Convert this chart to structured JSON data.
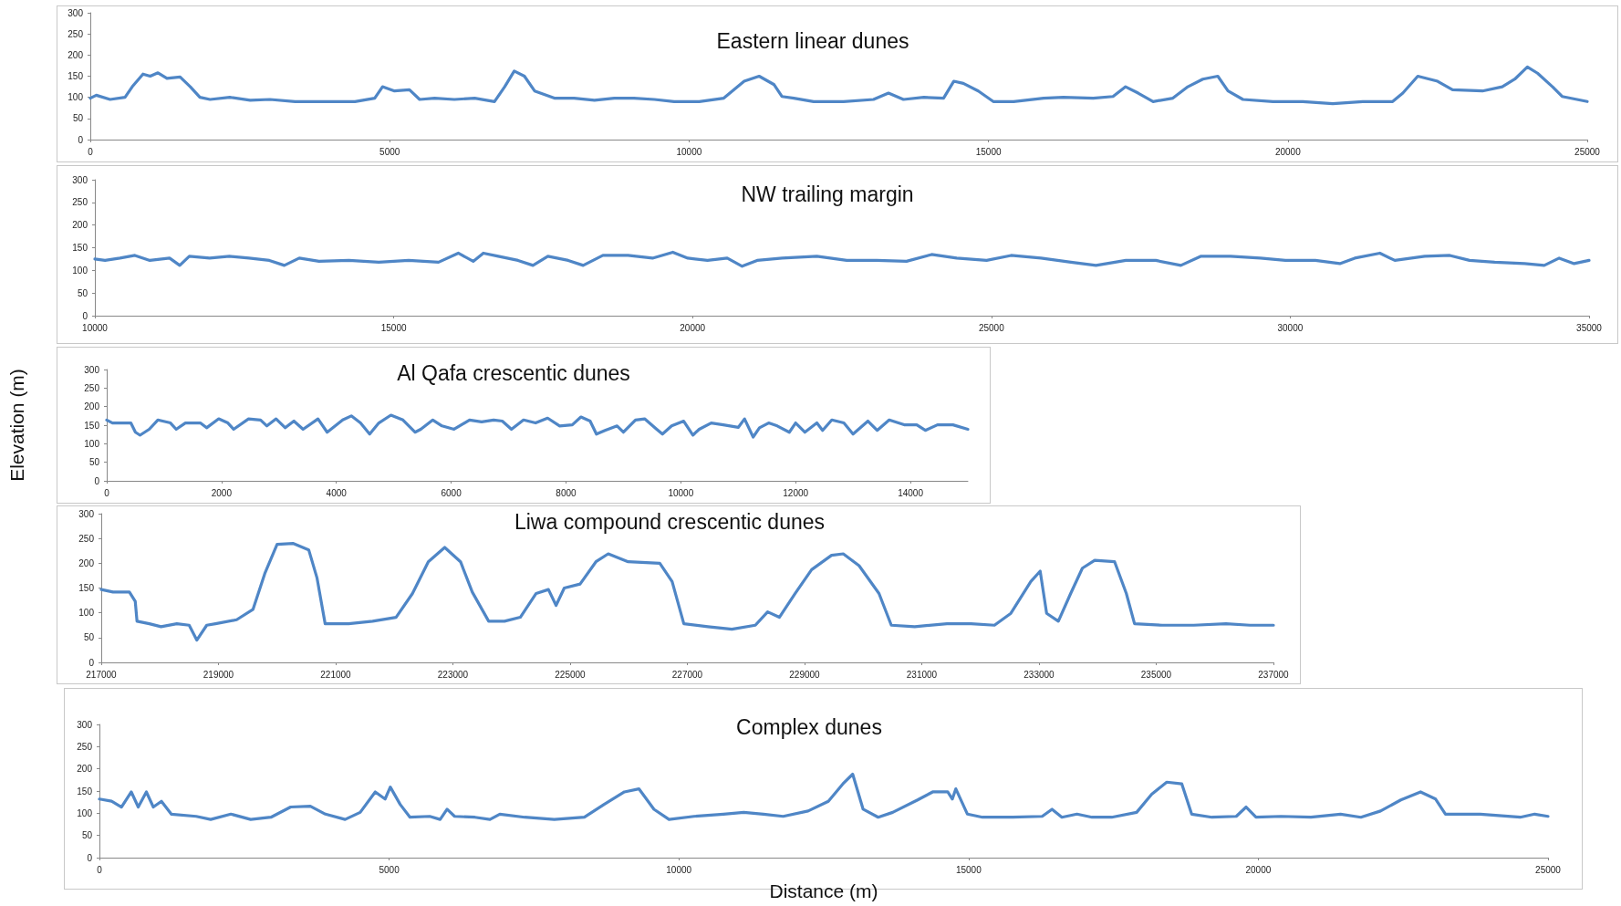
{
  "chart_data": [
    {
      "type": "line",
      "title": "Eastern linear dunes",
      "marker": "none",
      "line_style": "solid",
      "xlim": [
        0,
        25000
      ],
      "xticks": [
        0,
        5000,
        10000,
        15000,
        20000,
        25000
      ],
      "ylim": [
        0,
        300
      ],
      "yticks": [
        0,
        50,
        100,
        150,
        200,
        250,
        300
      ],
      "x": [
        0,
        100,
        330,
        580,
        700,
        880,
        1000,
        1130,
        1280,
        1500,
        1670,
        1830,
        2000,
        2330,
        2670,
        3000,
        3420,
        3920,
        4420,
        4750,
        4880,
        5080,
        5330,
        5500,
        5750,
        6080,
        6420,
        6750,
        6920,
        7080,
        7250,
        7420,
        7750,
        8080,
        8420,
        8750,
        9080,
        9420,
        9750,
        10170,
        10580,
        10920,
        11170,
        11420,
        11550,
        11750,
        12080,
        12580,
        13080,
        13330,
        13580,
        13920,
        14250,
        14420,
        14580,
        14830,
        15080,
        15420,
        15920,
        16250,
        16750,
        17080,
        17290,
        17500,
        17750,
        18080,
        18330,
        18580,
        18830,
        19000,
        19250,
        19750,
        20250,
        20750,
        21250,
        21750,
        21920,
        22170,
        22500,
        22750,
        23250,
        23580,
        23790,
        24000,
        24170,
        24420,
        24580,
        25000
      ],
      "series": [
        {
          "color": "#4f86c6",
          "values": [
            98,
            105,
            95,
            100,
            125,
            155,
            150,
            158,
            145,
            148,
            125,
            100,
            95,
            100,
            93,
            95,
            90,
            90,
            90,
            98,
            125,
            115,
            118,
            95,
            98,
            95,
            98,
            90,
            125,
            162,
            150,
            115,
            98,
            98,
            93,
            98,
            98,
            95,
            90,
            90,
            98,
            138,
            150,
            130,
            102,
            98,
            90,
            90,
            95,
            110,
            95,
            100,
            98,
            138,
            133,
            115,
            90,
            90,
            98,
            100,
            98,
            102,
            125,
            110,
            90,
            98,
            125,
            143,
            150,
            115,
            95,
            90,
            90,
            85,
            90,
            90,
            110,
            150,
            138,
            118,
            115,
            125,
            143,
            172,
            157,
            125,
            102,
            90
          ]
        }
      ]
    },
    {
      "type": "line",
      "title": "NW trailing margin",
      "marker": "none",
      "line_style": "solid",
      "xlim": [
        10000,
        35000
      ],
      "xticks": [
        10000,
        15000,
        20000,
        25000,
        30000,
        35000
      ],
      "ylim": [
        0,
        300
      ],
      "yticks": [
        0,
        50,
        100,
        150,
        200,
        250,
        300
      ],
      "x": [
        10000,
        10170,
        10420,
        10670,
        10920,
        11250,
        11420,
        11580,
        11920,
        12250,
        12580,
        12920,
        13170,
        13420,
        13750,
        14250,
        14750,
        15250,
        15750,
        16080,
        16330,
        16500,
        16750,
        17080,
        17330,
        17580,
        17920,
        18170,
        18500,
        18920,
        19330,
        19670,
        19920,
        20250,
        20580,
        20830,
        21080,
        21500,
        22080,
        22580,
        23080,
        23580,
        24000,
        24420,
        24920,
        25330,
        25830,
        26330,
        26750,
        27250,
        27750,
        28170,
        28500,
        29000,
        29500,
        29920,
        30420,
        30830,
        31080,
        31500,
        31750,
        32250,
        32670,
        33000,
        33420,
        33920,
        34250,
        34500,
        34750,
        35000
      ],
      "series": [
        {
          "color": "#4f86c6",
          "values": [
            125,
            122,
            127,
            133,
            122,
            127,
            111,
            131,
            127,
            131,
            127,
            122,
            111,
            127,
            120,
            122,
            118,
            122,
            118,
            138,
            120,
            138,
            131,
            122,
            111,
            131,
            122,
            111,
            133,
            133,
            127,
            140,
            127,
            122,
            127,
            109,
            122,
            127,
            131,
            122,
            122,
            120,
            135,
            127,
            122,
            133,
            127,
            118,
            111,
            122,
            122,
            111,
            131,
            131,
            127,
            122,
            122,
            115,
            127,
            138,
            122,
            131,
            133,
            122,
            118,
            115,
            111,
            127,
            115,
            122
          ]
        }
      ]
    },
    {
      "type": "line",
      "title": "Al Qafa crescentic dunes",
      "ylabel": "Elevation (m)",
      "marker": "none",
      "line_style": "solid",
      "xlim": [
        0,
        15000
      ],
      "xticks": [
        0,
        2000,
        4000,
        6000,
        8000,
        10000,
        12000,
        14000
      ],
      "ylim": [
        0,
        300
      ],
      "yticks": [
        0,
        50,
        100,
        150,
        200,
        250,
        300
      ],
      "x": [
        0,
        100,
        420,
        500,
        580,
        740,
        890,
        1110,
        1210,
        1370,
        1630,
        1740,
        1950,
        2110,
        2210,
        2470,
        2680,
        2790,
        2950,
        3110,
        3260,
        3420,
        3680,
        3840,
        4110,
        4260,
        4420,
        4580,
        4740,
        4950,
        5160,
        5370,
        5470,
        5680,
        5840,
        6050,
        6320,
        6530,
        6740,
        6890,
        7050,
        7260,
        7470,
        7680,
        7890,
        8110,
        8260,
        8420,
        8530,
        8680,
        8890,
        9000,
        9210,
        9370,
        9580,
        9680,
        9840,
        10050,
        10210,
        10320,
        10530,
        10740,
        11000,
        11110,
        11260,
        11370,
        11530,
        11680,
        11890,
        12000,
        12160,
        12370,
        12470,
        12630,
        12840,
        13000,
        13260,
        13420,
        13630,
        13890,
        14110,
        14260,
        14470,
        14740,
        15000
      ],
      "series": [
        {
          "color": "#4f86c6",
          "values": [
            164,
            156,
            156,
            131,
            123,
            139,
            164,
            156,
            139,
            156,
            156,
            143,
            167,
            156,
            139,
            167,
            164,
            148,
            167,
            143,
            161,
            139,
            167,
            131,
            164,
            175,
            156,
            126,
            156,
            177,
            164,
            131,
            139,
            164,
            148,
            139,
            164,
            159,
            164,
            161,
            139,
            164,
            156,
            169,
            148,
            151,
            172,
            161,
            126,
            136,
            148,
            131,
            164,
            167,
            139,
            126,
            148,
            161,
            123,
            139,
            156,
            151,
            144,
            167,
            118,
            143,
            156,
            148,
            131,
            156,
            131,
            156,
            136,
            164,
            156,
            126,
            161,
            136,
            164,
            151,
            151,
            136,
            151,
            151,
            139
          ]
        }
      ]
    },
    {
      "type": "line",
      "title": "Liwa compound crescentic dunes",
      "marker": "none",
      "line_style": "solid",
      "xlim": [
        217000,
        237000
      ],
      "xticks": [
        217000,
        219000,
        221000,
        223000,
        225000,
        227000,
        229000,
        231000,
        233000,
        235000,
        237000
      ],
      "ylim": [
        0,
        300
      ],
      "yticks": [
        0,
        50,
        100,
        150,
        200,
        250,
        300
      ],
      "x": [
        217000,
        217200,
        217480,
        217580,
        217610,
        217820,
        218020,
        218290,
        218500,
        218630,
        218800,
        218950,
        219310,
        219590,
        219790,
        220000,
        220270,
        220540,
        220680,
        220820,
        221220,
        221630,
        222030,
        222310,
        222580,
        222860,
        223130,
        223330,
        223610,
        223880,
        224150,
        224420,
        224630,
        224760,
        224900,
        225170,
        225440,
        225650,
        225990,
        226530,
        226740,
        226940,
        227350,
        227760,
        228160,
        228370,
        228570,
        228840,
        229120,
        229460,
        229660,
        229930,
        230270,
        230480,
        230880,
        231430,
        231840,
        232240,
        232520,
        232860,
        233020,
        233130,
        233330,
        233540,
        233740,
        233950,
        234290,
        234490,
        234630,
        235100,
        235640,
        236190,
        236600,
        237000
      ],
      "series": [
        {
          "color": "#4f86c6",
          "values": [
            147,
            142,
            142,
            123,
            83,
            78,
            72,
            78,
            75,
            45,
            75,
            78,
            86,
            107,
            179,
            238,
            240,
            227,
            171,
            78,
            78,
            83,
            91,
            139,
            203,
            232,
            203,
            142,
            83,
            83,
            91,
            139,
            147,
            115,
            150,
            158,
            203,
            219,
            203,
            200,
            163,
            78,
            72,
            67,
            75,
            102,
            91,
            139,
            187,
            216,
            219,
            195,
            139,
            75,
            72,
            78,
            78,
            75,
            99,
            163,
            184,
            99,
            83,
            139,
            190,
            206,
            203,
            139,
            78,
            75,
            75,
            78,
            75,
            75
          ]
        }
      ]
    },
    {
      "type": "line",
      "title": "Complex dunes",
      "xlabel": "Distance (m)",
      "marker": "none",
      "line_style": "solid",
      "xlim": [
        0,
        25000
      ],
      "xticks": [
        0,
        5000,
        10000,
        15000,
        20000,
        25000
      ],
      "ylim": [
        0,
        300
      ],
      "yticks": [
        0,
        50,
        100,
        150,
        200,
        250,
        300
      ],
      "x": [
        0,
        210,
        380,
        550,
        670,
        810,
        930,
        1070,
        1240,
        1670,
        1920,
        2270,
        2610,
        2960,
        3300,
        3640,
        3900,
        4240,
        4500,
        4760,
        4930,
        5020,
        5190,
        5360,
        5700,
        5880,
        6000,
        6130,
        6480,
        6740,
        6910,
        7340,
        7850,
        8370,
        8710,
        9060,
        9310,
        9570,
        9830,
        10260,
        10770,
        11120,
        11460,
        11800,
        12230,
        12580,
        12830,
        13000,
        13180,
        13440,
        13690,
        14120,
        14380,
        14640,
        14720,
        14780,
        14980,
        15240,
        15760,
        16270,
        16440,
        16610,
        16870,
        17130,
        17470,
        17900,
        18160,
        18420,
        18680,
        18850,
        19200,
        19620,
        19790,
        19960,
        20390,
        20910,
        21420,
        21770,
        22110,
        22460,
        22800,
        23060,
        23230,
        23830,
        24520,
        24770,
        25000
      ],
      "series": [
        {
          "color": "#4f86c6",
          "values": [
            132,
            127,
            114,
            148,
            114,
            148,
            114,
            127,
            98,
            93,
            86,
            98,
            86,
            91,
            114,
            116,
            98,
            86,
            102,
            148,
            132,
            159,
            120,
            91,
            93,
            86,
            109,
            93,
            91,
            86,
            98,
            91,
            86,
            91,
            120,
            148,
            155,
            109,
            86,
            93,
            98,
            102,
            98,
            93,
            105,
            127,
            166,
            188,
            109,
            91,
            102,
            130,
            148,
            148,
            132,
            155,
            98,
            91,
            91,
            93,
            109,
            91,
            98,
            91,
            91,
            102,
            143,
            170,
            166,
            98,
            91,
            93,
            114,
            91,
            93,
            91,
            98,
            91,
            105,
            130,
            148,
            132,
            98,
            98,
            91,
            98,
            93
          ]
        }
      ]
    }
  ]
}
